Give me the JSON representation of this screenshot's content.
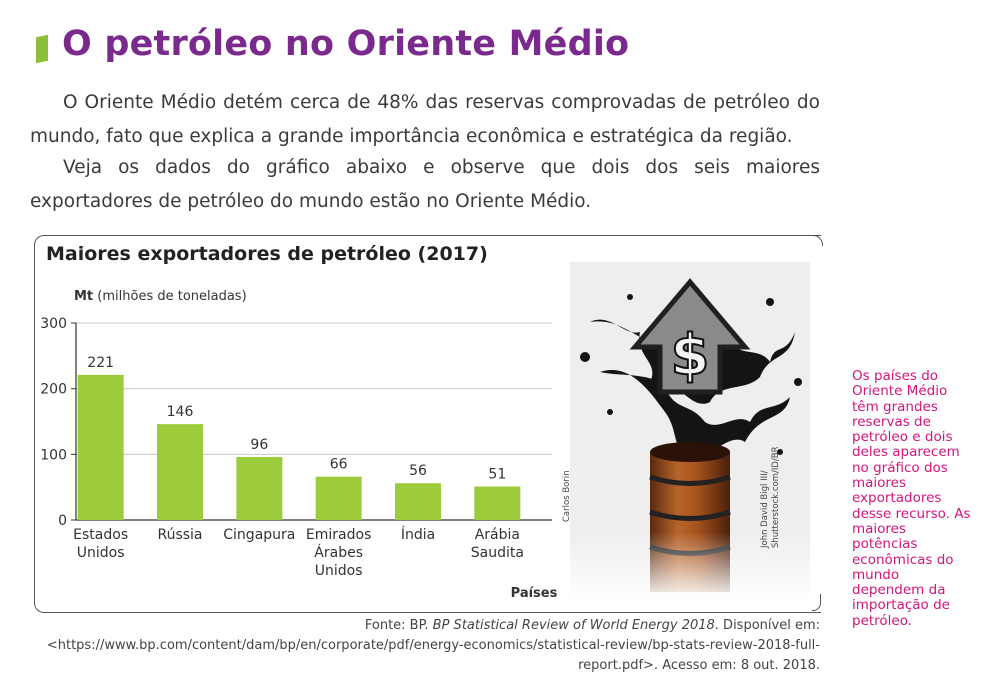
{
  "heading": {
    "title": "O petróleo no Oriente Médio"
  },
  "paragraphs": [
    "O Oriente Médio detém cerca de 48% das reservas comprovadas de petróleo do mundo, fato que explica a grande importância econômica e estratégica da região.",
    "Veja os dados do gráfico abaixo e observe que dois dos seis maiores exportadores de petróleo do mundo estão no Oriente Médio."
  ],
  "chart_box": {
    "title": "Maiores exportadores de petróleo (2017)",
    "chart_credit": "Carlos Borin",
    "photo_credit": "John David Bigl III/ Shutterstock.com/ID/BR"
  },
  "chart_data": {
    "type": "bar",
    "title": "Maiores exportadores de petróleo (2017)",
    "ylabel_bold": "Mt",
    "ylabel_rest": " (milhões de toneladas)",
    "xlabel": "Países",
    "ylim": [
      0,
      300
    ],
    "yticks": [
      0,
      100,
      200,
      300
    ],
    "grid": true,
    "bar_color": "#9ccb3b",
    "categories": [
      [
        "Estados",
        "Unidos"
      ],
      [
        "Rússia"
      ],
      [
        "Cingapura"
      ],
      [
        "Emirados",
        "Árabes",
        "Unidos"
      ],
      [
        "Índia"
      ],
      [
        "Arábia",
        "Saudita"
      ]
    ],
    "values": [
      221,
      146,
      96,
      66,
      56,
      51
    ]
  },
  "source": {
    "prefix": "Fonte: BP. ",
    "publication": "BP Statistical Review of World Energy 2018",
    "suffix": ". Disponível em: <https://www.bp.com/content/dam/bp/en/corporate/pdf/energy-economics/statistical-review/bp-stats-review-2018-full-report.pdf>. Acesso em: 8 out. 2018."
  },
  "sidenote": "Os países do Oriente Médio têm grandes reservas de petróleo e dois deles aparecem no gráfico dos maiores exportadores desse recurso. As maiores potências econômicas do mundo dependem da importação de petróleo.",
  "colors": {
    "title": "#7a2a8c",
    "accent": "#8bbf3a",
    "sidenote": "#d4157b"
  }
}
